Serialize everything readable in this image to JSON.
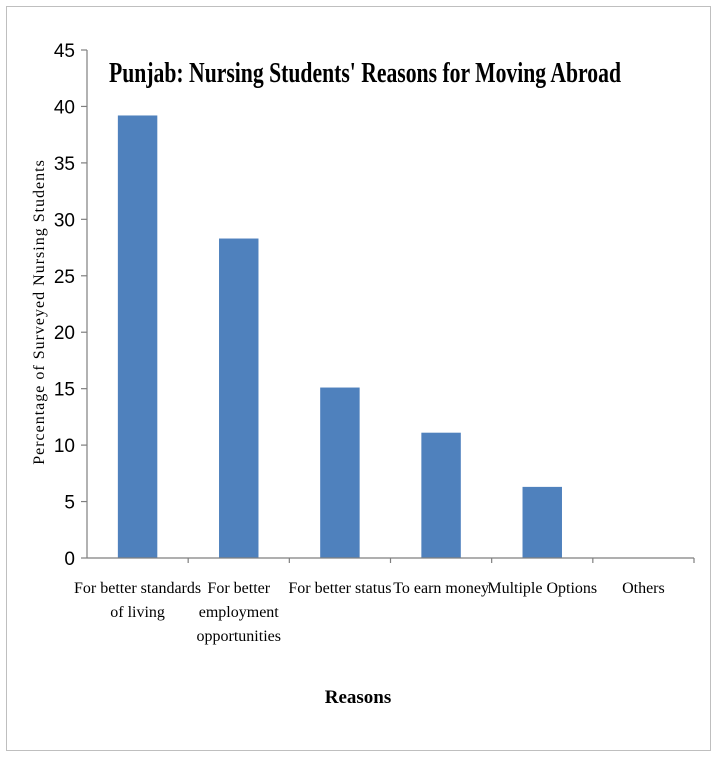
{
  "chart_data": {
    "type": "bar",
    "title": "Punjab: Nursing Students' Reasons for Moving Abroad",
    "xlabel": "Reasons",
    "ylabel": "Percentage of Surveyed Nursing Students",
    "categories": [
      [
        "For better standards",
        "of living"
      ],
      [
        "For better",
        "employment",
        "opportunities"
      ],
      [
        "For better status"
      ],
      [
        "To earn money"
      ],
      [
        "Multiple Options"
      ],
      [
        "Others"
      ]
    ],
    "values": [
      39.2,
      28.3,
      15.1,
      11.1,
      6.3,
      0
    ],
    "ylim": [
      0,
      45
    ],
    "yticks": [
      0,
      5,
      10,
      15,
      20,
      25,
      30,
      35,
      40,
      45
    ],
    "grid": false,
    "legend": "none",
    "colors": {
      "bar": "#4f81bd",
      "axis": "#7f7f7f",
      "text": "#000000"
    }
  }
}
